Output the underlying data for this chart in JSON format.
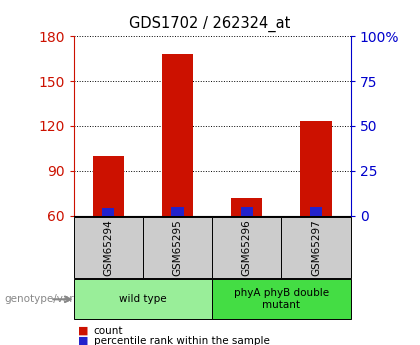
{
  "title": "GDS1702 / 262324_at",
  "samples": [
    "GSM65294",
    "GSM65295",
    "GSM65296",
    "GSM65297"
  ],
  "count_values": [
    100,
    168,
    72,
    123
  ],
  "percentile_values": [
    5,
    6,
    6,
    6
  ],
  "ymin": 60,
  "ymax": 180,
  "yticks_left": [
    60,
    90,
    120,
    150,
    180
  ],
  "yticks_right": [
    0,
    25,
    50,
    75,
    100
  ],
  "yticks_right_labels": [
    "0",
    "25",
    "50",
    "75",
    "100%"
  ],
  "bar_width": 0.45,
  "percentile_bar_width": 0.18,
  "count_color": "#cc1100",
  "percentile_color": "#2222cc",
  "groups": [
    {
      "label": "wild type",
      "samples": [
        0,
        1
      ],
      "color": "#99ee99"
    },
    {
      "label": "phyA phyB double\nmutant",
      "samples": [
        2,
        3
      ],
      "color": "#44dd44"
    }
  ],
  "genotype_label": "genotype/variation",
  "legend_count": "count",
  "legend_percentile": "percentile rank within the sample",
  "sample_box_color": "#cccccc"
}
